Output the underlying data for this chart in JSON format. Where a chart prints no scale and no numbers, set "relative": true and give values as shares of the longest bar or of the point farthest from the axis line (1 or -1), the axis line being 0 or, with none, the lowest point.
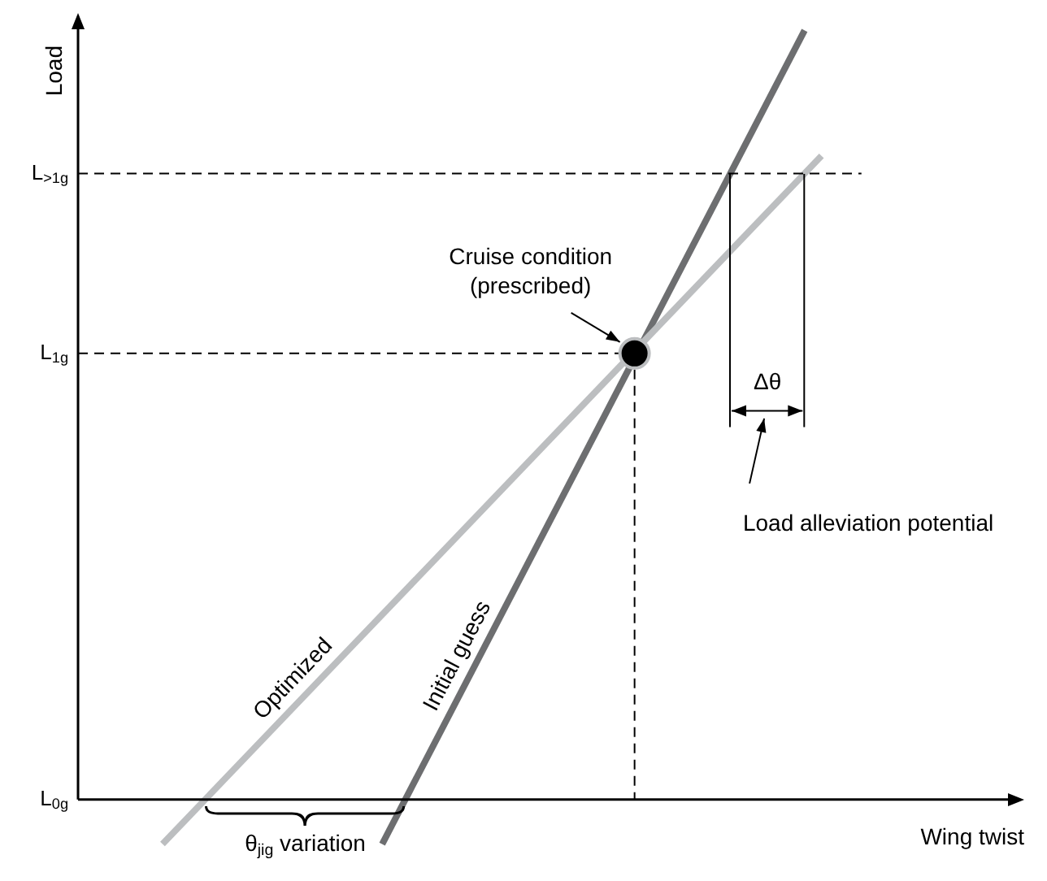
{
  "chart_data": {
    "type": "line",
    "relative": true,
    "xlabel": "Wing twist",
    "ylabel": "Load",
    "legend": false,
    "categories": [
      null,
      null,
      null,
      null,
      null,
      null,
      null,
      null,
      null,
      null,
      null,
      null,
      null,
      null,
      null,
      null,
      null,
      null,
      null,
      null,
      null,
      null,
      null,
      null,
      null,
      null,
      null,
      null,
      null,
      null,
      null,
      null,
      null,
      null,
      null,
      null,
      null,
      null,
      null,
      null,
      null,
      null,
      null,
      null,
      null,
      null,
      null,
      null,
      null,
      null,
      null,
      null,
      null,
      null,
      null,
      null,
      null
    ],
    "series": [
      {
        "name": "Optimized",
        "color": "#bcbec0",
        "values": [
          null,
          null,
          null,
          null,
          null,
          -0.058,
          null,
          null,
          null,
          null,
          null,
          null,
          null,
          null,
          null,
          null,
          null,
          null,
          null,
          null,
          null,
          null,
          null,
          null,
          null,
          null,
          null,
          null,
          null,
          null,
          null,
          null,
          null,
          null,
          null,
          null,
          null,
          null,
          null,
          null,
          null,
          null,
          null,
          null,
          0.837,
          null,
          null,
          null,
          null,
          null,
          null,
          null,
          null,
          null,
          null,
          null,
          null
        ]
      },
      {
        "name": "Initial guess",
        "color": "#6d6e70",
        "values": [
          null,
          null,
          null,
          null,
          null,
          null,
          null,
          null,
          null,
          null,
          null,
          null,
          null,
          null,
          null,
          null,
          null,
          null,
          -0.058,
          null,
          null,
          null,
          null,
          null,
          null,
          null,
          null,
          null,
          null,
          null,
          null,
          null,
          null,
          null,
          null,
          null,
          null,
          null,
          null,
          null,
          null,
          null,
          null,
          1,
          null,
          null,
          null,
          null,
          null,
          null,
          null,
          null,
          null,
          null,
          null,
          null,
          null
        ]
      }
    ],
    "ref_lines": [
      {
        "axis": "y",
        "value": 0.814,
        "label": "L$_{>1g}$",
        "line_style": "dashed",
        "color": "#000000"
      },
      {
        "axis": "y",
        "value": 0.58,
        "label": "L$_{1g}$",
        "line_style": "dashed",
        "color": "#000000"
      },
      {
        "axis": "y",
        "value": 0,
        "label": "L$_{0g}$",
        "color": "#000000"
      }
    ],
    "annotations": [
      "Cruise condition\n(prescribed)",
      "Δθ",
      "Load alleviation potential",
      "θ$_{jig}$ variation"
    ]
  }
}
